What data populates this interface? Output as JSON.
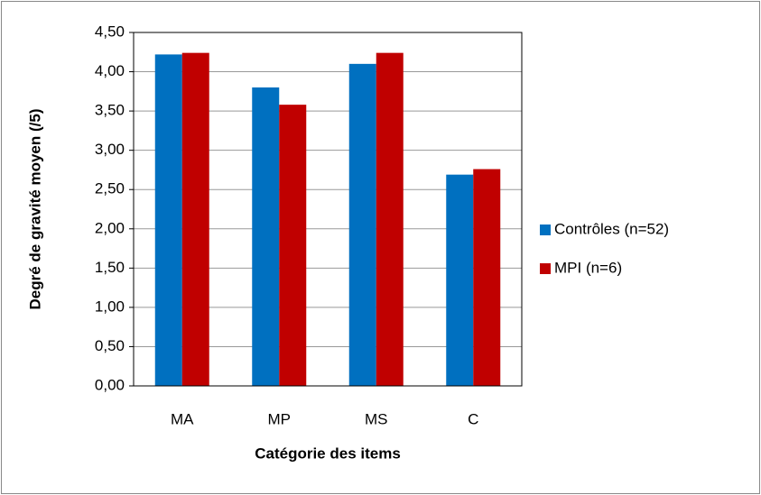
{
  "chart_data": {
    "type": "bar",
    "categories": [
      "MA",
      "MP",
      "MS",
      "C"
    ],
    "series": [
      {
        "name": "Contrôles (n=52)",
        "color": "#0070c0",
        "values": [
          4.22,
          3.8,
          4.1,
          2.69
        ]
      },
      {
        "name": "MPI (n=6)",
        "color": "#c00000",
        "values": [
          4.24,
          3.58,
          4.24,
          2.76
        ]
      }
    ],
    "xlabel": "Catégorie des items",
    "ylabel": "Degré de gravité moyen (/5)",
    "ylim": [
      0,
      4.5
    ],
    "yticks": [
      {
        "value": 0,
        "label": "0,00"
      },
      {
        "value": 0.5,
        "label": "0,50"
      },
      {
        "value": 1,
        "label": "1,00"
      },
      {
        "value": 1.5,
        "label": "1,50"
      },
      {
        "value": 2,
        "label": "2,00"
      },
      {
        "value": 2.5,
        "label": "2,50"
      },
      {
        "value": 3,
        "label": "3,00"
      },
      {
        "value": 3.5,
        "label": "3,50"
      },
      {
        "value": 4,
        "label": "4,00"
      },
      {
        "value": 4.5,
        "label": "4,50"
      }
    ],
    "grid": true,
    "legend": "right"
  }
}
